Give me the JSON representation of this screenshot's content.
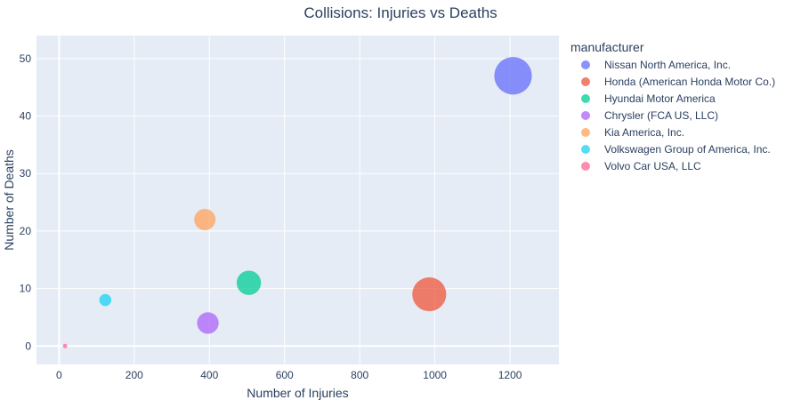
{
  "chart_data": {
    "type": "scatter",
    "title": "Collisions: Injuries vs Deaths",
    "xlabel": "Number of Injuries",
    "ylabel": "Number of Deaths",
    "xlim": [
      -60,
      1330
    ],
    "ylim": [
      -3.2,
      54
    ],
    "xticks": [
      0,
      200,
      400,
      600,
      800,
      1000,
      1200
    ],
    "yticks": [
      0,
      10,
      20,
      30,
      40,
      50
    ],
    "grid": true,
    "legend": {
      "title": "manufacturer",
      "placement": "right"
    },
    "size_encodes": "injuries",
    "series": [
      {
        "name": "Nissan North America, Inc.",
        "color": "#636efa",
        "points": [
          {
            "x": 1208,
            "y": 47
          }
        ]
      },
      {
        "name": "Honda (American Honda Motor Co.)",
        "color": "#ef553b",
        "points": [
          {
            "x": 985,
            "y": 9
          }
        ]
      },
      {
        "name": "Hyundai Motor America",
        "color": "#00cc96",
        "points": [
          {
            "x": 505,
            "y": 11
          }
        ]
      },
      {
        "name": "Chrysler (FCA US, LLC)",
        "color": "#ab63fa",
        "points": [
          {
            "x": 396,
            "y": 4
          }
        ]
      },
      {
        "name": "Kia America, Inc.",
        "color": "#ffa15a",
        "points": [
          {
            "x": 388,
            "y": 22
          }
        ]
      },
      {
        "name": "Volkswagen Group of America, Inc.",
        "color": "#19d3f3",
        "points": [
          {
            "x": 123,
            "y": 8
          }
        ]
      },
      {
        "name": "Volvo Car USA, LLC",
        "color": "#ff6692",
        "points": [
          {
            "x": 16,
            "y": 0
          }
        ]
      }
    ]
  }
}
